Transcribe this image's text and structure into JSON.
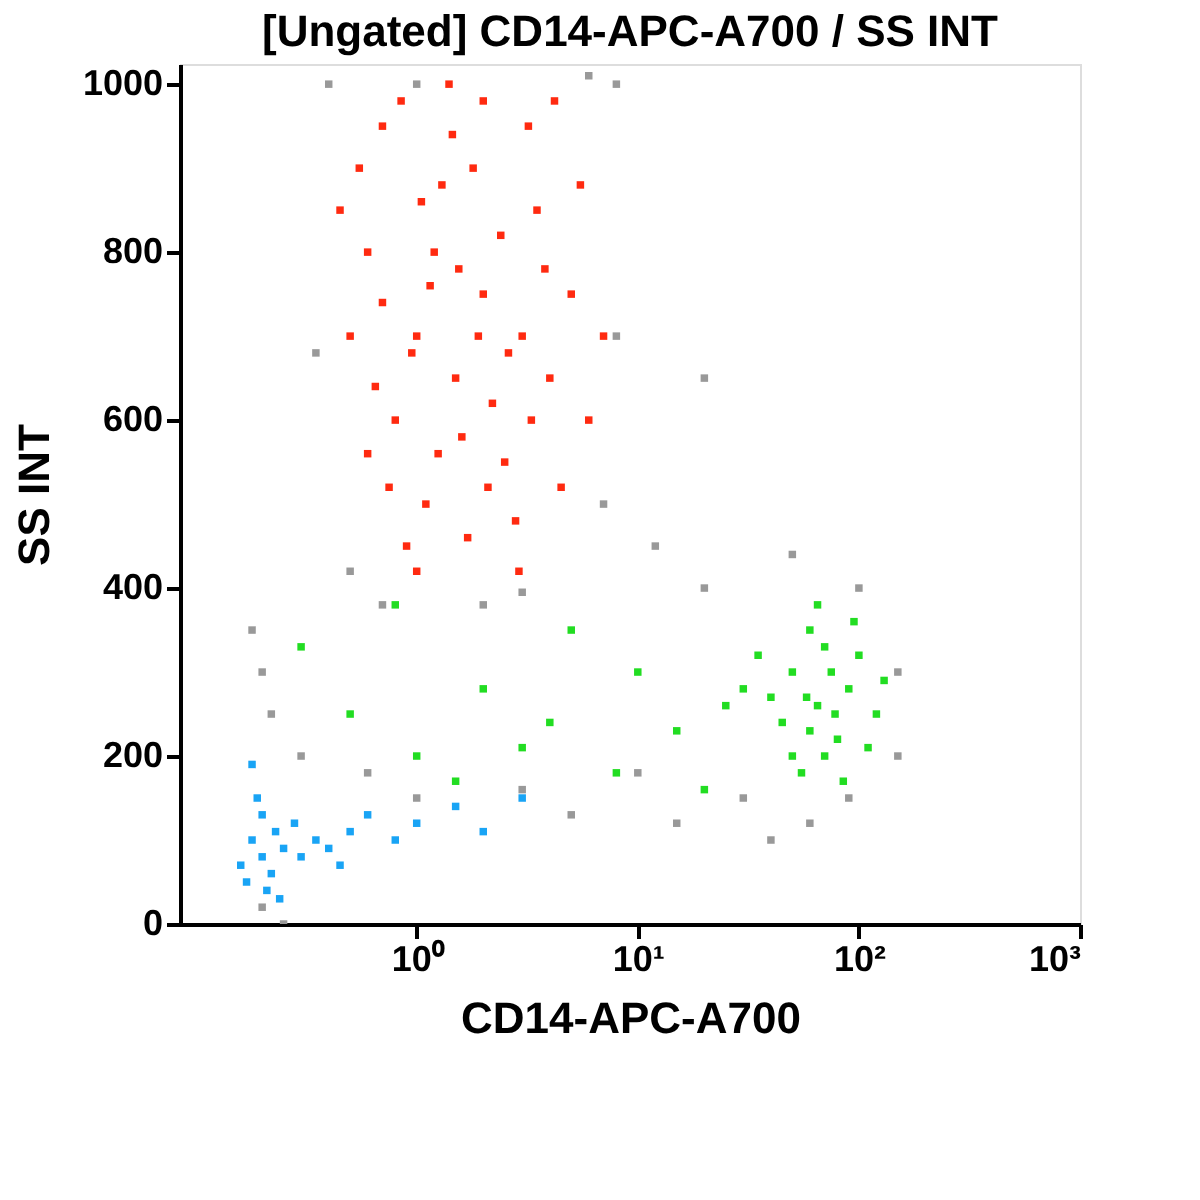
{
  "chart_data": {
    "type": "scatter",
    "title": "[Ungated] CD14-APC-A700 / SS INT",
    "xlabel": "CD14-APC-A700",
    "ylabel": "SS INT",
    "log": "x",
    "grid": false,
    "legend": false,
    "marker": "square",
    "xlim": [
      0.085,
      1000
    ],
    "ylim": [
      0,
      1024
    ],
    "xticks": [
      {
        "value": 1,
        "label": "10⁰"
      },
      {
        "value": 10,
        "label": "10¹"
      },
      {
        "value": 100,
        "label": "10²"
      },
      {
        "value": 1000,
        "label": "10³"
      }
    ],
    "yticks": [
      0,
      200,
      400,
      600,
      800,
      1000
    ],
    "series": [
      {
        "color": "#999999",
        "x": [
          0.2,
          0.2,
          0.22,
          0.3,
          0.5,
          0.7,
          1.0,
          8,
          7,
          0.4,
          12,
          20,
          30,
          40,
          150,
          150,
          20,
          0.18,
          0.25,
          5,
          10,
          3,
          1,
          0.6,
          90,
          60,
          100,
          3,
          0.35,
          6,
          50,
          15,
          2,
          8
        ],
        "values": [
          300,
          20,
          250,
          200,
          420,
          380,
          1000,
          700,
          500,
          1000,
          450,
          400,
          150,
          100,
          300,
          200,
          650,
          350,
          0,
          130,
          180,
          160,
          150,
          180,
          150,
          120,
          400,
          395,
          680,
          1010,
          440,
          120,
          380,
          1000
        ]
      },
      {
        "color": "#ff2a10",
        "x": [
          1.0,
          1.5,
          2.0,
          1.2,
          0.8,
          2.5,
          1.8,
          0.7,
          3.0,
          1.1,
          0.6,
          2.2,
          4.0,
          1.4,
          0.9,
          3.5,
          0.5,
          2.8,
          1.6,
          1.3,
          5.0,
          0.75,
          2.0,
          6.0,
          1.0,
          3.2,
          0.55,
          1.9,
          2.4,
          0.65,
          4.5,
          1.15,
          7.0,
          0.45,
          2.6,
          1.7,
          3.8,
          0.85,
          1.25,
          5.5,
          0.95,
          2.1,
          1.45,
          3.3,
          0.7,
          4.2,
          1.05,
          2.9,
          0.6,
          1.55
        ],
        "values": [
          700,
          650,
          750,
          800,
          600,
          550,
          900,
          950,
          700,
          500,
          800,
          620,
          650,
          1000,
          450,
          850,
          700,
          480,
          580,
          880,
          750,
          520,
          980,
          600,
          420,
          950,
          900,
          700,
          820,
          640,
          520,
          760,
          700,
          850,
          680,
          460,
          780,
          980,
          560,
          880,
          680,
          520,
          940,
          600,
          740,
          980,
          860,
          420,
          560,
          780
        ]
      },
      {
        "color": "#22dd22",
        "x": [
          65,
          50,
          80,
          60,
          70,
          90,
          45,
          100,
          55,
          75,
          40,
          120,
          65,
          85,
          35,
          60,
          110,
          70,
          50,
          95,
          30,
          130,
          58,
          78,
          0.3,
          0.5,
          1.0,
          2.0,
          3.0,
          5.0,
          8.0,
          15,
          20,
          10,
          0.8,
          25,
          1.5,
          4
        ],
        "values": [
          260,
          300,
          220,
          350,
          200,
          280,
          240,
          320,
          180,
          300,
          270,
          250,
          380,
          170,
          320,
          230,
          210,
          330,
          200,
          360,
          280,
          290,
          270,
          250,
          330,
          250,
          200,
          280,
          210,
          350,
          180,
          230,
          160,
          300,
          380,
          260,
          170,
          240
        ]
      },
      {
        "color": "#19a4f5",
        "x": [
          0.2,
          0.18,
          0.22,
          0.2,
          0.17,
          0.25,
          0.19,
          0.23,
          0.21,
          0.16,
          0.28,
          0.3,
          0.35,
          0.4,
          0.5,
          0.6,
          0.8,
          1.0,
          1.5,
          2.0,
          3.0,
          0.45,
          0.24,
          0.18
        ],
        "values": [
          80,
          100,
          60,
          130,
          50,
          90,
          150,
          110,
          40,
          70,
          120,
          80,
          100,
          90,
          110,
          130,
          100,
          120,
          140,
          110,
          150,
          70,
          30,
          190
        ]
      }
    ]
  }
}
